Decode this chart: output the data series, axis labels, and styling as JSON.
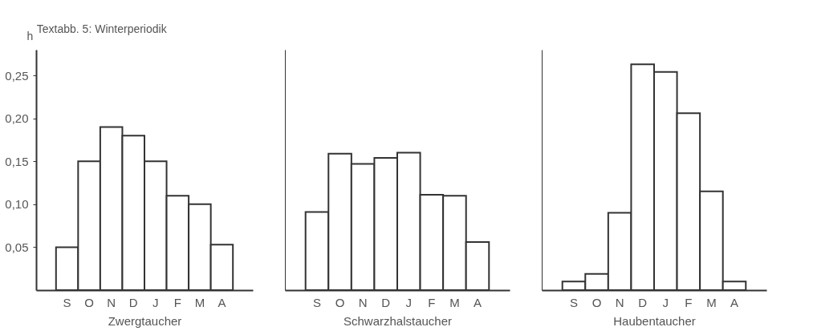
{
  "chart_data": [
    {
      "type": "bar",
      "title": "Textabb. 5: Winterperiodik",
      "ylabel": "h",
      "xlabel": "Zwergtaucher",
      "categories": [
        "S",
        "O",
        "N",
        "D",
        "J",
        "F",
        "M",
        "A"
      ],
      "values": [
        0.05,
        0.15,
        0.19,
        0.18,
        0.15,
        0.11,
        0.1,
        0.053
      ],
      "color": "#ffffff",
      "ylim": [
        0,
        0.28
      ],
      "yticks": [
        {
          "value": 0.05,
          "label": "0,05"
        },
        {
          "value": 0.1,
          "label": "0,10"
        },
        {
          "value": 0.15,
          "label": "0,15"
        },
        {
          "value": 0.2,
          "label": "0,20"
        },
        {
          "value": 0.25,
          "label": "0,25"
        }
      ],
      "grid": false
    },
    {
      "type": "bar",
      "xlabel": "Schwarzhalstaucher",
      "categories": [
        "S",
        "O",
        "N",
        "D",
        "J",
        "F",
        "M",
        "A"
      ],
      "values": [
        0.091,
        0.159,
        0.147,
        0.154,
        0.16,
        0.111,
        0.11,
        0.056
      ],
      "color": "#ffffff",
      "ylim": [
        0,
        0.28
      ],
      "tick_labels": "x",
      "grid": false
    },
    {
      "type": "bar",
      "xlabel": "Haubentaucher",
      "categories": [
        "S",
        "O",
        "N",
        "D",
        "J",
        "F",
        "M",
        "A"
      ],
      "values": [
        0.01,
        0.019,
        0.09,
        0.263,
        0.254,
        0.206,
        0.115,
        0.01
      ],
      "color": "#ffffff",
      "ylim": [
        0,
        0.28
      ],
      "tick_labels": "x",
      "grid": false
    }
  ]
}
